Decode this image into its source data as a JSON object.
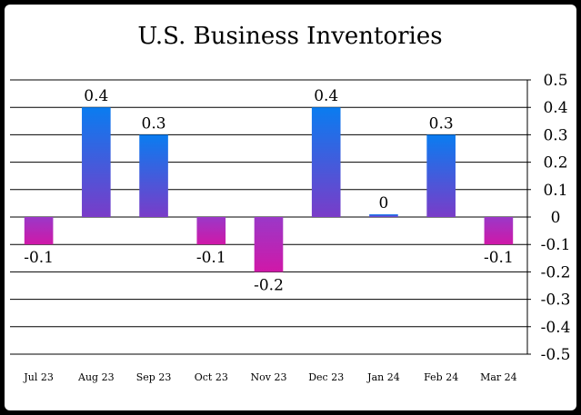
{
  "chart_data": {
    "type": "bar",
    "title": "U.S. Business Inventories",
    "xlabel": "",
    "ylabel": "",
    "categories": [
      "Jul 23",
      "Aug 23",
      "Sep 23",
      "Oct 23",
      "Nov 23",
      "Dec 23",
      "Jan 24",
      "Feb 24",
      "Mar 24"
    ],
    "values": [
      -0.1,
      0.4,
      0.3,
      -0.1,
      -0.2,
      0.4,
      0,
      0.3,
      -0.1
    ],
    "data_labels": [
      "-0.1",
      "0.4",
      "0.3",
      "-0.1",
      "-0.2",
      "0.4",
      "0",
      "0.3",
      "-0.1"
    ],
    "ylim": [
      -0.5,
      0.5
    ],
    "y_ticks": [
      0.5,
      0.4,
      0.3,
      0.2,
      0.1,
      0,
      -0.1,
      -0.2,
      -0.3,
      -0.4,
      -0.5
    ],
    "y_tick_labels": [
      "0.5",
      "0.4",
      "0.3",
      "0.2",
      "0.1",
      "0",
      "-0.1",
      "-0.2",
      "-0.3",
      "-0.4",
      "-0.5"
    ],
    "y_axis_position": "right",
    "grid": true,
    "legend": "none",
    "colors": {
      "positive_top": "#0a7cf0",
      "positive_bottom": "#7a3cc8",
      "negative_top": "#9a38c8",
      "negative_bottom": "#d018a8",
      "grid": "#000000"
    }
  }
}
